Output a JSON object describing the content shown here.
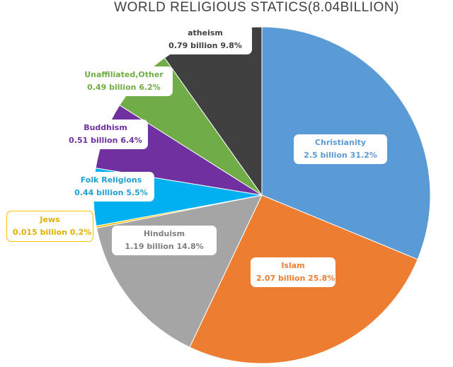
{
  "chart_data": {
    "type": "pie",
    "title": "WORLD RELIGIOUS STATICS(8.04BILLION)",
    "slices": [
      {
        "name": "Christianity",
        "value": 31.2,
        "amount": "2.5 billion",
        "percent": "31.2%",
        "color": "#5b9bd5",
        "text_color": "#5b9bd5"
      },
      {
        "name": "Islam",
        "value": 25.8,
        "amount": "2.07 billion",
        "percent": "25.8%",
        "color": "#ed7d31",
        "text_color": "#ed7d31"
      },
      {
        "name": "Hinduism",
        "value": 14.8,
        "amount": "1.19 billion",
        "percent": "14.8%",
        "color": "#a5a5a5",
        "text_color": "#7f7f7f"
      },
      {
        "name": "Jews",
        "value": 0.2,
        "amount": "0.015 billion",
        "percent": "0.2%",
        "color": "#ffc000",
        "text_color": "#e0b000"
      },
      {
        "name": "Folk Religions",
        "value": 5.5,
        "amount": "0.44 billion",
        "percent": "5.5%",
        "color": "#00b0f0",
        "text_color": "#1fa0d0"
      },
      {
        "name": "Buddhism",
        "value": 6.4,
        "amount": "0.51 billion",
        "percent": "6.4%",
        "color": "#7030a0",
        "text_color": "#7030a0"
      },
      {
        "name": "Unaffiliated,Other",
        "value": 6.2,
        "amount": "0.49 billion",
        "percent": "6.2%",
        "color": "#70ad47",
        "text_color": "#70ad47"
      },
      {
        "name": "atheism",
        "value": 9.8,
        "amount": "0.79 billion",
        "percent": "9.8%",
        "color": "#404040",
        "text_color": "#404040"
      }
    ]
  }
}
